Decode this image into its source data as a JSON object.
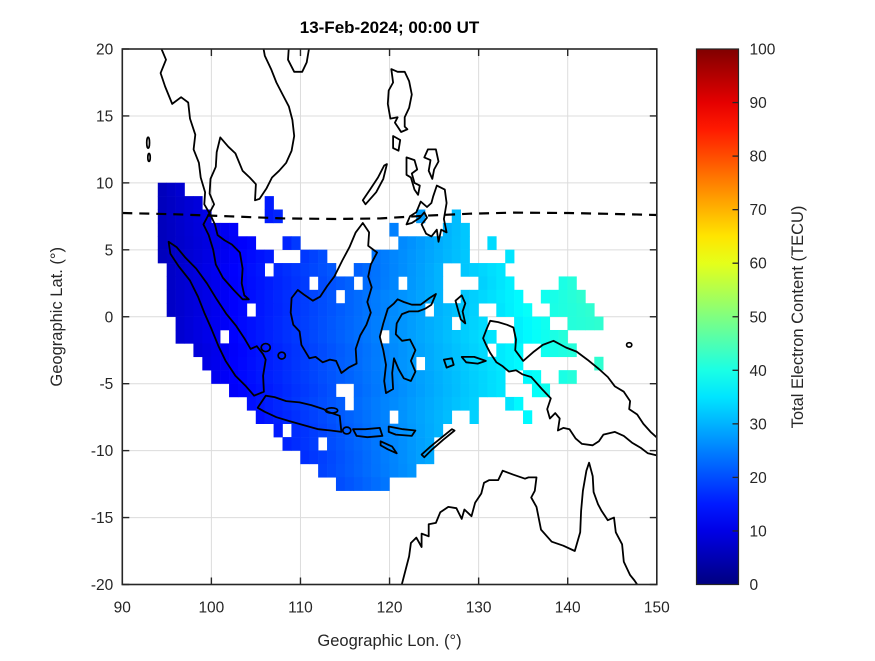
{
  "figure": {
    "title": "13-Feb-2024; 00:00 UT",
    "background": "#ffffff"
  },
  "axes": {
    "xlabel": "Geographic Lon. (°)",
    "ylabel": "Geographic Lat. (°)",
    "xlim": [
      90,
      150
    ],
    "ylim": [
      -20,
      20
    ],
    "x_ticks": [
      90,
      100,
      110,
      120,
      130,
      140,
      150
    ],
    "y_ticks": [
      -20,
      -15,
      -10,
      -5,
      0,
      5,
      10,
      15,
      20
    ],
    "grid": true,
    "grid_color": "#dcdcdc",
    "axis_color": "#262626",
    "coastline_color": "#000000"
  },
  "colorbar": {
    "label": "Total Electron Content (TECU)",
    "ticks": [
      0,
      10,
      20,
      30,
      40,
      50,
      60,
      70,
      80,
      90,
      100
    ],
    "range": [
      0,
      100
    ],
    "colormap": "jet"
  },
  "chart_data": {
    "type": "heatmap",
    "title": "13-Feb-2024; 00:00 UT",
    "xlabel": "Geographic Lon. (°)",
    "ylabel": "Geographic Lat. (°)",
    "value_label": "Total Electron Content (TECU)",
    "xlim": [
      90,
      150
    ],
    "ylim": [
      -20,
      20
    ],
    "vlim": [
      0,
      100
    ],
    "cell_deg": 1,
    "rows": [
      {
        "lat": 9,
        "segs": [
          [
            94,
            97,
            6,
            8
          ]
        ]
      },
      {
        "lat": 8,
        "segs": [
          [
            94,
            99,
            6,
            9
          ],
          [
            106,
            107,
            15,
            15
          ]
        ]
      },
      {
        "lat": 7,
        "segs": [
          [
            94,
            100,
            6,
            10
          ],
          [
            106,
            108,
            15,
            16
          ],
          [
            123,
            124,
            28,
            28
          ],
          [
            127,
            128,
            31,
            31
          ]
        ]
      },
      {
        "lat": 6,
        "segs": [
          [
            94,
            103,
            6,
            12
          ],
          [
            120,
            121,
            25,
            25
          ],
          [
            126,
            129,
            30,
            32
          ]
        ]
      },
      {
        "lat": 5,
        "segs": [
          [
            94,
            105,
            6,
            13
          ],
          [
            108,
            110,
            16,
            18
          ],
          [
            121,
            129,
            26,
            32
          ],
          [
            131,
            132,
            34,
            34
          ]
        ]
      },
      {
        "lat": 4,
        "segs": [
          [
            94,
            107,
            6,
            15
          ],
          [
            109,
            113,
            17,
            20
          ],
          [
            118,
            129,
            24,
            32
          ],
          [
            133,
            134,
            35,
            35
          ]
        ]
      },
      {
        "lat": 3,
        "segs": [
          [
            95,
            114,
            7,
            21
          ],
          [
            116,
            126,
            22,
            30
          ],
          [
            128,
            133,
            32,
            35
          ]
        ]
      },
      {
        "lat": 2,
        "segs": [
          [
            95,
            116,
            7,
            22
          ],
          [
            117,
            126,
            23,
            30
          ],
          [
            130,
            134,
            33,
            36
          ],
          [
            139,
            141,
            40,
            41
          ]
        ]
      },
      {
        "lat": 1,
        "segs": [
          [
            95,
            126,
            7,
            30
          ],
          [
            128,
            135,
            32,
            37
          ],
          [
            137,
            142,
            39,
            42
          ]
        ]
      },
      {
        "lat": 0,
        "segs": [
          [
            95,
            130,
            7,
            33
          ],
          [
            132,
            136,
            35,
            38
          ],
          [
            138,
            143,
            40,
            42
          ]
        ]
      },
      {
        "lat": -1,
        "segs": [
          [
            96,
            131,
            8,
            34
          ],
          [
            134,
            138,
            36,
            39
          ],
          [
            140,
            144,
            41,
            42
          ]
        ]
      },
      {
        "lat": -2,
        "segs": [
          [
            96,
            132,
            8,
            35
          ],
          [
            134,
            140,
            36,
            41
          ]
        ]
      },
      {
        "lat": -3,
        "segs": [
          [
            98,
            135,
            9,
            37
          ],
          [
            137,
            141,
            39,
            41
          ]
        ]
      },
      {
        "lat": -4,
        "segs": [
          [
            99,
            135,
            10,
            37
          ],
          [
            143,
            144,
            42,
            42
          ]
        ]
      },
      {
        "lat": -5,
        "segs": [
          [
            100,
            133,
            11,
            35
          ],
          [
            135,
            137,
            37,
            38
          ],
          [
            139,
            141,
            40,
            41
          ]
        ]
      },
      {
        "lat": -6,
        "segs": [
          [
            102,
            133,
            12,
            35
          ],
          [
            136,
            138,
            38,
            39
          ]
        ]
      },
      {
        "lat": -7,
        "segs": [
          [
            104,
            130,
            14,
            33
          ],
          [
            133,
            135,
            35,
            37
          ]
        ]
      },
      {
        "lat": -8,
        "segs": [
          [
            105,
            127,
            14,
            31
          ],
          [
            129,
            130,
            33,
            33
          ],
          [
            135,
            136,
            37,
            37
          ]
        ]
      },
      {
        "lat": -9,
        "segs": [
          [
            107,
            126,
            15,
            30
          ]
        ]
      },
      {
        "lat": -10,
        "segs": [
          [
            108,
            125,
            16,
            29
          ]
        ]
      },
      {
        "lat": -11,
        "segs": [
          [
            110,
            125,
            17,
            29
          ]
        ]
      },
      {
        "lat": -12,
        "segs": [
          [
            112,
            123,
            19,
            27
          ]
        ]
      },
      {
        "lat": -13,
        "segs": [
          [
            114,
            120,
            20,
            24
          ]
        ]
      }
    ],
    "holes": [
      [
        106,
        3
      ],
      [
        109,
        4
      ],
      [
        111,
        2
      ],
      [
        114,
        1
      ],
      [
        117,
        4
      ],
      [
        121,
        2
      ],
      [
        124,
        0
      ],
      [
        127,
        -1
      ],
      [
        119,
        -2
      ],
      [
        104,
        0
      ],
      [
        101,
        -2
      ],
      [
        108,
        -9
      ],
      [
        114,
        -6
      ],
      [
        115,
        -6
      ],
      [
        115,
        -7
      ],
      [
        120,
        -8
      ],
      [
        112,
        -10
      ],
      [
        123,
        -4
      ],
      [
        131,
        -3
      ],
      [
        126,
        2
      ]
    ],
    "dip_equator": {
      "style": "dashed",
      "points": [
        [
          90,
          7.75
        ],
        [
          96,
          7.65
        ],
        [
          102,
          7.5
        ],
        [
          108,
          7.35
        ],
        [
          114,
          7.3
        ],
        [
          119,
          7.35
        ],
        [
          124,
          7.55
        ],
        [
          129,
          7.7
        ],
        [
          134,
          7.78
        ],
        [
          140,
          7.75
        ],
        [
          145,
          7.68
        ],
        [
          150,
          7.6
        ]
      ]
    }
  }
}
